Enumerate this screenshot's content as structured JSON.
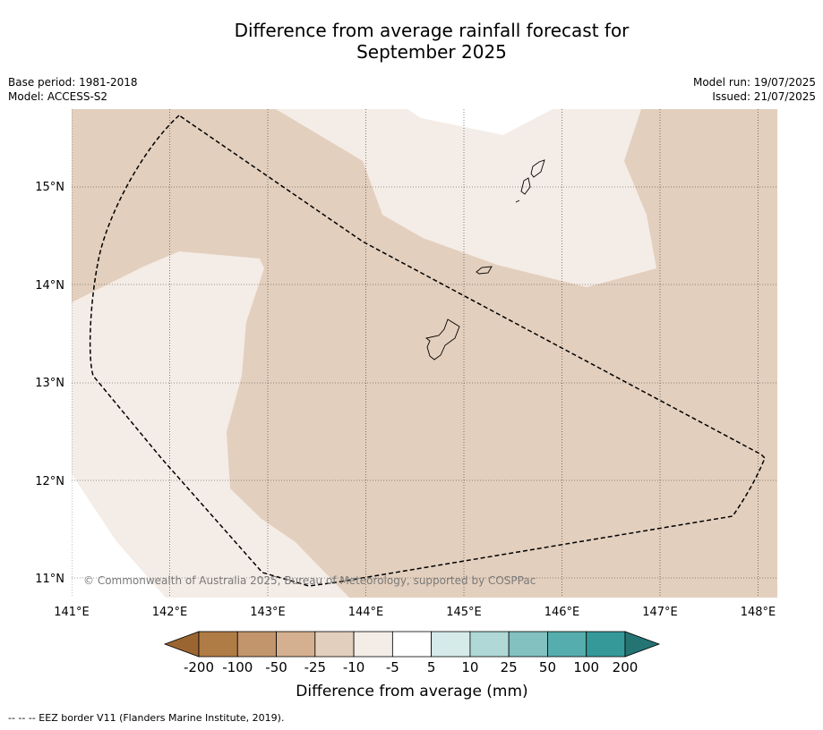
{
  "title": {
    "line1": "Difference from average rainfall forecast for",
    "line2": "September 2025"
  },
  "meta_left": {
    "base_period": "Base period: 1981-2018",
    "model": "Model: ACCESS-S2"
  },
  "meta_right": {
    "model_run": "Model run: 19/07/2025",
    "issued": "Issued: 21/07/2025"
  },
  "map": {
    "lat_labels": [
      "15°N",
      "14°N",
      "13°N",
      "12°N",
      "11°N"
    ],
    "lon_labels": [
      "141°E",
      "142°E",
      "143°E",
      "144°E",
      "145°E",
      "146°E",
      "147°E",
      "148°E"
    ],
    "copyright": "© Commonwealth of Australia 2025, Bureau of Meteorology, supported by COSPPac"
  },
  "colorbar": {
    "ticks": [
      "-200",
      "-100",
      "-50",
      "-25",
      "-10",
      "-5",
      "5",
      "10",
      "25",
      "50",
      "100",
      "200"
    ],
    "colors": [
      "#9b6532",
      "#b07c45",
      "#c2956c",
      "#d4b090",
      "#e3cfbd",
      "#f4ece6",
      "#ffffff",
      "#d5ebea",
      "#afd8d6",
      "#83c0c0",
      "#56adad",
      "#35999a",
      "#247474"
    ],
    "title": "Difference from average (mm)"
  },
  "footnote": "--  --  -- EEZ border V11 (Flanders Marine Institute, 2019)."
}
